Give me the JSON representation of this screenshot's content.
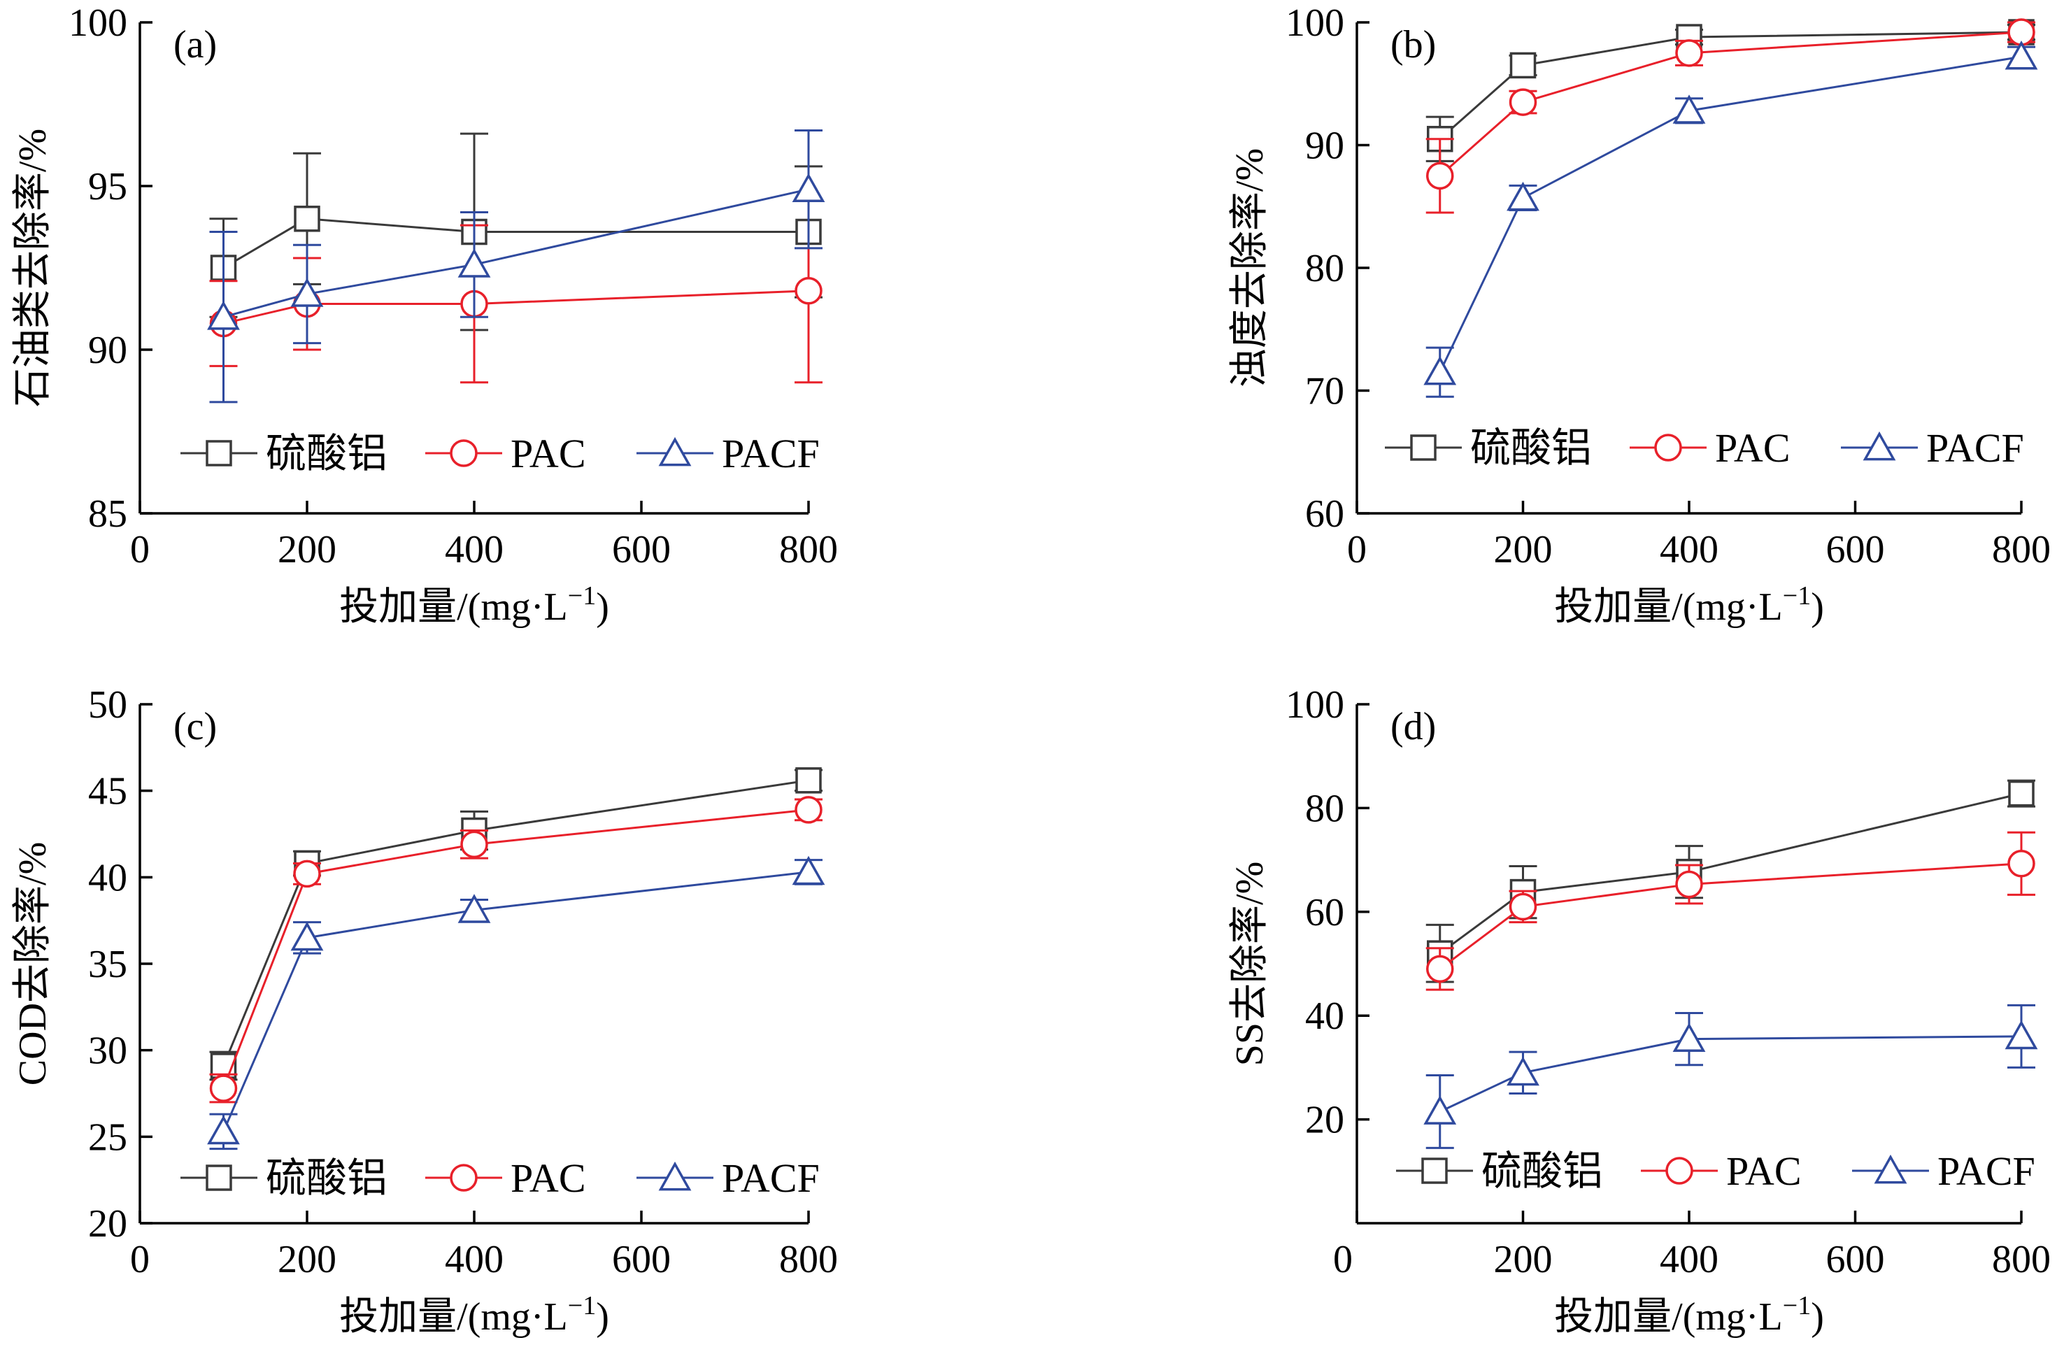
{
  "colors": {
    "硫酸铝": "#3a3a3a",
    "PAC": "#e8202a",
    "PACF": "#2f4a9e"
  },
  "chart_data": [
    {
      "type": "line",
      "panel_label": "(a)",
      "xlabel": "投加量/(mg·L−1)",
      "ylabel": "石油类去除率/%",
      "xlim": [
        0,
        800
      ],
      "ylim": [
        85,
        100
      ],
      "xticks": [
        0,
        200,
        400,
        600,
        800
      ],
      "yticks": [
        85,
        90,
        95,
        100
      ],
      "x": [
        100,
        200,
        400,
        800
      ],
      "legend": "bottom",
      "series": [
        {
          "name": "硫酸铝",
          "marker": "square",
          "values": [
            92.5,
            94.0,
            93.6,
            93.6
          ],
          "errors": [
            1.5,
            2.0,
            3.0,
            2.0
          ]
        },
        {
          "name": "PAC",
          "marker": "circle",
          "values": [
            90.8,
            91.4,
            91.4,
            91.8
          ],
          "errors": [
            1.3,
            1.4,
            2.4,
            2.8
          ]
        },
        {
          "name": "PACF",
          "marker": "triangle",
          "values": [
            91.0,
            91.7,
            92.6,
            94.9
          ],
          "errors": [
            2.6,
            1.5,
            1.6,
            1.8
          ]
        }
      ]
    },
    {
      "type": "line",
      "panel_label": "(b)",
      "xlabel": "投加量/(mg·L−1)",
      "ylabel": "浊度去除率/%",
      "xlim": [
        0,
        800
      ],
      "ylim": [
        60,
        100
      ],
      "xticks": [
        0,
        200,
        400,
        600,
        800
      ],
      "yticks": [
        60,
        70,
        80,
        90,
        100
      ],
      "x": [
        100,
        200,
        400,
        800
      ],
      "legend": "bottom",
      "series": [
        {
          "name": "硫酸铝",
          "marker": "square",
          "values": [
            90.5,
            96.5,
            98.8,
            99.2
          ],
          "errors": [
            1.8,
            0.8,
            0.6,
            0.6
          ]
        },
        {
          "name": "PAC",
          "marker": "circle",
          "values": [
            87.5,
            93.5,
            97.5,
            99.2
          ],
          "errors": [
            3.0,
            0.9,
            1.0,
            0.8
          ]
        },
        {
          "name": "PACF",
          "marker": "triangle",
          "values": [
            71.5,
            85.7,
            92.8,
            97.2
          ],
          "errors": [
            2.0,
            1.0,
            1.0,
            0.8
          ]
        }
      ]
    },
    {
      "type": "line",
      "panel_label": "(c)",
      "xlabel": "投加量/(mg·L−1)",
      "ylabel": "COD去除率/%",
      "xlim": [
        0,
        800
      ],
      "ylim": [
        20,
        50
      ],
      "xticks": [
        0,
        200,
        400,
        600,
        800
      ],
      "yticks": [
        20,
        25,
        30,
        35,
        40,
        45,
        50
      ],
      "x": [
        100,
        200,
        400,
        800
      ],
      "legend": "bottom",
      "series": [
        {
          "name": "硫酸铝",
          "marker": "square",
          "values": [
            29.1,
            40.8,
            42.7,
            45.6
          ],
          "errors": [
            0.8,
            0.7,
            1.1,
            0.6
          ]
        },
        {
          "name": "PAC",
          "marker": "circle",
          "values": [
            27.8,
            40.2,
            41.9,
            43.9
          ],
          "errors": [
            0.8,
            0.6,
            0.8,
            0.6
          ]
        },
        {
          "name": "PACF",
          "marker": "triangle",
          "values": [
            25.3,
            36.5,
            38.1,
            40.3
          ],
          "errors": [
            1.0,
            0.9,
            0.6,
            0.7
          ]
        }
      ]
    },
    {
      "type": "line",
      "panel_label": "(d)",
      "xlabel": "投加量/(mg·L−1)",
      "ylabel": "SS去除率/%",
      "xlim": [
        0,
        800
      ],
      "ylim": [
        0,
        100
      ],
      "xticks": [
        0,
        200,
        400,
        600,
        800
      ],
      "yticks": [
        20,
        40,
        60,
        80,
        100
      ],
      "ytick_labels": [
        "20",
        "40",
        "60",
        "80",
        "100"
      ],
      "x": [
        100,
        200,
        400,
        800
      ],
      "legend": "bottom",
      "series": [
        {
          "name": "硫酸铝",
          "marker": "square",
          "values": [
            52.0,
            63.8,
            67.7,
            82.8
          ],
          "errors": [
            5.5,
            5.0,
            5.0,
            2.5
          ]
        },
        {
          "name": "PAC",
          "marker": "circle",
          "values": [
            49.0,
            61.0,
            65.3,
            69.3
          ],
          "errors": [
            4.0,
            3.0,
            3.7,
            6.0
          ]
        },
        {
          "name": "PACF",
          "marker": "triangle",
          "values": [
            21.5,
            29.0,
            35.5,
            36.0
          ],
          "errors": [
            7.0,
            4.0,
            5.0,
            6.0
          ]
        }
      ]
    }
  ]
}
